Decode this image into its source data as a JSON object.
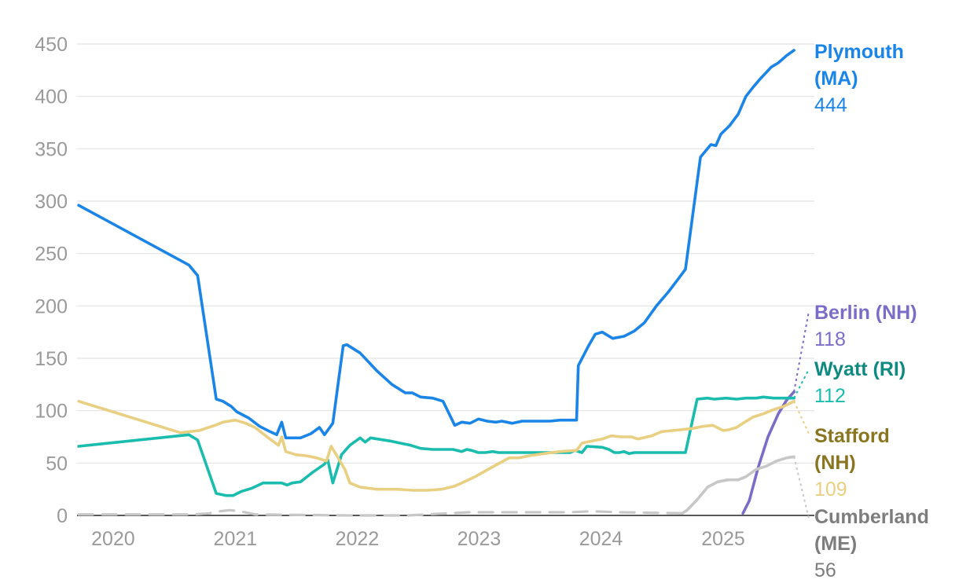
{
  "chart_data": {
    "type": "line",
    "title": "",
    "xlabel": "",
    "ylabel": "",
    "xlim": [
      "2019-09-15",
      "2025-10-01"
    ],
    "ylim": [
      0,
      450
    ],
    "grid": true,
    "legend": "direct labels at right end of lines",
    "y_ticks": [
      "0",
      "50",
      "100",
      "150",
      "200",
      "250",
      "300",
      "350",
      "400",
      "450"
    ],
    "x_ticks": [
      {
        "label": "2020",
        "date": "2020-01-01"
      },
      {
        "label": "2021",
        "date": "2021-01-01"
      },
      {
        "label": "2022",
        "date": "2022-01-01"
      },
      {
        "label": "2023",
        "date": "2023-01-01"
      },
      {
        "label": "2024",
        "date": "2024-01-01"
      },
      {
        "label": "2025",
        "date": "2025-01-01"
      }
    ],
    "series": [
      {
        "id": "plymouth",
        "name_lines": [
          "Plymouth",
          "(MA)"
        ],
        "end_value": "444",
        "color": "#1a85e6",
        "name_color": "#1a85e6",
        "dash": "",
        "points": [
          [
            "2019-09-20",
            296
          ],
          [
            "2020-08-15",
            239
          ],
          [
            "2020-09-10",
            229
          ],
          [
            "2020-11-05",
            111
          ],
          [
            "2020-11-25",
            109
          ],
          [
            "2020-12-20",
            104
          ],
          [
            "2021-01-05",
            99
          ],
          [
            "2021-02-10",
            93
          ],
          [
            "2021-03-15",
            85
          ],
          [
            "2021-04-15",
            80
          ],
          [
            "2021-05-05",
            77
          ],
          [
            "2021-05-20",
            89
          ],
          [
            "2021-06-01",
            74
          ],
          [
            "2021-07-15",
            74
          ],
          [
            "2021-08-15",
            78
          ],
          [
            "2021-09-10",
            84
          ],
          [
            "2021-09-25",
            77
          ],
          [
            "2021-10-20",
            88
          ],
          [
            "2021-11-20",
            162
          ],
          [
            "2021-12-01",
            163
          ],
          [
            "2022-01-10",
            155
          ],
          [
            "2022-03-01",
            138
          ],
          [
            "2022-04-15",
            125
          ],
          [
            "2022-05-25",
            117
          ],
          [
            "2022-06-15",
            117
          ],
          [
            "2022-07-10",
            113
          ],
          [
            "2022-08-15",
            112
          ],
          [
            "2022-09-15",
            109
          ],
          [
            "2022-10-20",
            86
          ],
          [
            "2022-11-10",
            89
          ],
          [
            "2022-12-05",
            88
          ],
          [
            "2022-12-30",
            92
          ],
          [
            "2023-01-25",
            90
          ],
          [
            "2023-02-20",
            89
          ],
          [
            "2023-03-10",
            90
          ],
          [
            "2023-04-10",
            88
          ],
          [
            "2023-05-10",
            90
          ],
          [
            "2023-06-15",
            90
          ],
          [
            "2023-08-01",
            90
          ],
          [
            "2023-09-01",
            91
          ],
          [
            "2023-10-20",
            91
          ],
          [
            "2023-10-25",
            143
          ],
          [
            "2023-11-25",
            162
          ],
          [
            "2023-12-15",
            173
          ],
          [
            "2024-01-05",
            175
          ],
          [
            "2024-02-05",
            169
          ],
          [
            "2024-03-10",
            171
          ],
          [
            "2024-04-10",
            176
          ],
          [
            "2024-05-10",
            184
          ],
          [
            "2024-06-15",
            200
          ],
          [
            "2024-07-20",
            213
          ],
          [
            "2024-08-20",
            226
          ],
          [
            "2024-09-10",
            235
          ],
          [
            "2024-10-25",
            342
          ],
          [
            "2024-11-25",
            354
          ],
          [
            "2024-12-10",
            353
          ],
          [
            "2024-12-25",
            364
          ],
          [
            "2025-01-20",
            372
          ],
          [
            "2025-02-15",
            383
          ],
          [
            "2025-03-10",
            400
          ],
          [
            "2025-04-01",
            409
          ],
          [
            "2025-04-20",
            416
          ],
          [
            "2025-05-25",
            428
          ],
          [
            "2025-06-15",
            432
          ],
          [
            "2025-07-10",
            439
          ],
          [
            "2025-08-01",
            444
          ]
        ]
      },
      {
        "id": "berlin",
        "name_lines": [
          "Berlin (NH)"
        ],
        "end_value": "118",
        "color": "#7b6cc8",
        "name_color": "#7b6cc8",
        "dash": "",
        "points": [
          [
            "2025-03-01",
            2
          ],
          [
            "2025-03-20",
            14
          ],
          [
            "2025-04-15",
            45
          ],
          [
            "2025-05-15",
            75
          ],
          [
            "2025-06-15",
            97
          ],
          [
            "2025-07-10",
            110
          ],
          [
            "2025-08-01",
            118
          ]
        ]
      },
      {
        "id": "wyatt",
        "name_lines": [
          "Wyatt (RI)"
        ],
        "end_value": "112",
        "color": "#1abcae",
        "name_color": "#0f8a80",
        "dash": "",
        "points": [
          [
            "2019-09-20",
            66
          ],
          [
            "2020-08-15",
            77
          ],
          [
            "2020-09-10",
            72
          ],
          [
            "2020-11-05",
            21
          ],
          [
            "2020-12-05",
            19
          ],
          [
            "2020-12-25",
            19
          ],
          [
            "2021-01-20",
            23
          ],
          [
            "2021-02-20",
            26
          ],
          [
            "2021-03-25",
            31
          ],
          [
            "2021-04-25",
            31
          ],
          [
            "2021-05-20",
            31
          ],
          [
            "2021-06-05",
            29
          ],
          [
            "2021-06-20",
            31
          ],
          [
            "2021-07-15",
            32
          ],
          [
            "2021-08-20",
            41
          ],
          [
            "2021-09-25",
            49
          ],
          [
            "2021-10-05",
            53
          ],
          [
            "2021-10-20",
            31
          ],
          [
            "2021-11-15",
            58
          ],
          [
            "2021-12-10",
            67
          ],
          [
            "2022-01-10",
            74
          ],
          [
            "2022-01-25",
            70
          ],
          [
            "2022-02-10",
            74
          ],
          [
            "2022-04-10",
            71
          ],
          [
            "2022-05-10",
            69
          ],
          [
            "2022-06-10",
            67
          ],
          [
            "2022-07-10",
            64
          ],
          [
            "2022-08-15",
            63
          ],
          [
            "2022-10-15",
            63
          ],
          [
            "2022-11-10",
            61
          ],
          [
            "2022-11-25",
            63
          ],
          [
            "2022-12-10",
            62
          ],
          [
            "2022-12-30",
            60
          ],
          [
            "2023-01-20",
            60
          ],
          [
            "2023-02-10",
            61
          ],
          [
            "2023-03-01",
            60
          ],
          [
            "2023-09-15",
            60
          ],
          [
            "2023-10-01",
            60
          ],
          [
            "2023-10-15",
            62
          ],
          [
            "2023-11-05",
            60
          ],
          [
            "2023-11-20",
            66
          ],
          [
            "2024-01-05",
            65
          ],
          [
            "2024-01-25",
            63
          ],
          [
            "2024-02-10",
            60
          ],
          [
            "2024-02-25",
            60
          ],
          [
            "2024-03-10",
            61
          ],
          [
            "2024-03-25",
            59
          ],
          [
            "2024-04-10",
            60
          ],
          [
            "2024-09-10",
            60
          ],
          [
            "2024-10-15",
            111
          ],
          [
            "2024-11-15",
            112
          ],
          [
            "2024-12-05",
            111
          ],
          [
            "2025-01-10",
            112
          ],
          [
            "2025-02-10",
            111
          ],
          [
            "2025-03-10",
            112
          ],
          [
            "2025-04-10",
            112
          ],
          [
            "2025-05-01",
            113
          ],
          [
            "2025-06-01",
            112
          ],
          [
            "2025-08-01",
            112
          ]
        ]
      },
      {
        "id": "stafford",
        "name_lines": [
          "Stafford",
          "(NH)"
        ],
        "end_value": "109",
        "color": "#e8cf82",
        "name_color": "#8a7620",
        "dash": "",
        "points": [
          [
            "2019-09-20",
            109
          ],
          [
            "2020-07-20",
            79
          ],
          [
            "2020-09-15",
            81
          ],
          [
            "2020-11-01",
            86
          ],
          [
            "2020-11-25",
            89
          ],
          [
            "2021-01-01",
            91
          ],
          [
            "2021-02-01",
            88
          ],
          [
            "2021-03-01",
            84
          ],
          [
            "2021-04-10",
            74
          ],
          [
            "2021-05-10",
            67
          ],
          [
            "2021-05-20",
            75
          ],
          [
            "2021-06-01",
            61
          ],
          [
            "2021-07-01",
            58
          ],
          [
            "2021-08-01",
            57
          ],
          [
            "2021-09-01",
            55
          ],
          [
            "2021-10-01",
            52
          ],
          [
            "2021-10-15",
            66
          ],
          [
            "2021-11-01",
            57
          ],
          [
            "2021-11-25",
            44
          ],
          [
            "2021-12-10",
            31
          ],
          [
            "2022-01-10",
            27
          ],
          [
            "2022-03-01",
            25
          ],
          [
            "2022-05-01",
            25
          ],
          [
            "2022-06-15",
            24
          ],
          [
            "2022-08-01",
            24
          ],
          [
            "2022-09-10",
            25
          ],
          [
            "2022-10-20",
            28
          ],
          [
            "2022-11-10",
            31
          ],
          [
            "2022-12-20",
            37
          ],
          [
            "2023-02-20",
            48
          ],
          [
            "2023-04-01",
            55
          ],
          [
            "2023-05-01",
            55
          ],
          [
            "2023-06-01",
            57
          ],
          [
            "2023-07-15",
            59
          ],
          [
            "2023-09-01",
            61
          ],
          [
            "2023-10-20",
            62
          ],
          [
            "2023-11-05",
            69
          ],
          [
            "2023-12-05",
            71
          ],
          [
            "2024-01-05",
            73
          ],
          [
            "2024-02-01",
            76
          ],
          [
            "2024-03-01",
            75
          ],
          [
            "2024-04-01",
            75
          ],
          [
            "2024-04-20",
            73
          ],
          [
            "2024-06-01",
            76
          ],
          [
            "2024-07-01",
            80
          ],
          [
            "2024-08-01",
            81
          ],
          [
            "2024-09-01",
            82
          ],
          [
            "2024-10-01",
            83
          ],
          [
            "2024-11-01",
            85
          ],
          [
            "2024-12-01",
            86
          ],
          [
            "2025-01-01",
            81
          ],
          [
            "2025-01-20",
            82
          ],
          [
            "2025-02-10",
            84
          ],
          [
            "2025-03-01",
            88
          ],
          [
            "2025-04-01",
            94
          ],
          [
            "2025-05-01",
            97
          ],
          [
            "2025-06-01",
            101
          ],
          [
            "2025-07-01",
            104
          ],
          [
            "2025-08-01",
            109
          ]
        ]
      },
      {
        "id": "cumberland",
        "name_lines": [
          "Cumberland",
          "(ME)"
        ],
        "end_value": "56",
        "color": "#c7c7c7",
        "name_color": "#7d7d7d",
        "dash": "",
        "points": [
          [
            "2024-09-01",
            2
          ],
          [
            "2024-09-15",
            5
          ],
          [
            "2024-10-15",
            15
          ],
          [
            "2024-11-15",
            27
          ],
          [
            "2024-12-15",
            32
          ],
          [
            "2025-01-15",
            34
          ],
          [
            "2025-02-15",
            34
          ],
          [
            "2025-03-10",
            37
          ],
          [
            "2025-04-10",
            44
          ],
          [
            "2025-05-10",
            47
          ],
          [
            "2025-06-10",
            52
          ],
          [
            "2025-07-10",
            55
          ],
          [
            "2025-08-01",
            56
          ]
        ]
      },
      {
        "id": "cumberland-early",
        "name_lines": [],
        "end_value": "",
        "color": "#c7c7c7",
        "name_color": "#7d7d7d",
        "dash": "18 12",
        "points": [
          [
            "2019-09-20",
            1
          ],
          [
            "2020-09-01",
            1
          ],
          [
            "2020-10-15",
            2
          ],
          [
            "2020-11-15",
            4
          ],
          [
            "2020-12-15",
            5
          ],
          [
            "2021-01-15",
            4
          ],
          [
            "2021-03-01",
            1
          ],
          [
            "2021-12-01",
            0
          ],
          [
            "2022-06-01",
            0
          ],
          [
            "2022-10-01",
            2
          ],
          [
            "2022-12-01",
            3
          ],
          [
            "2023-06-01",
            3
          ],
          [
            "2023-10-01",
            3
          ],
          [
            "2023-12-01",
            4
          ],
          [
            "2024-03-01",
            3
          ],
          [
            "2024-09-01",
            2
          ]
        ]
      }
    ]
  }
}
